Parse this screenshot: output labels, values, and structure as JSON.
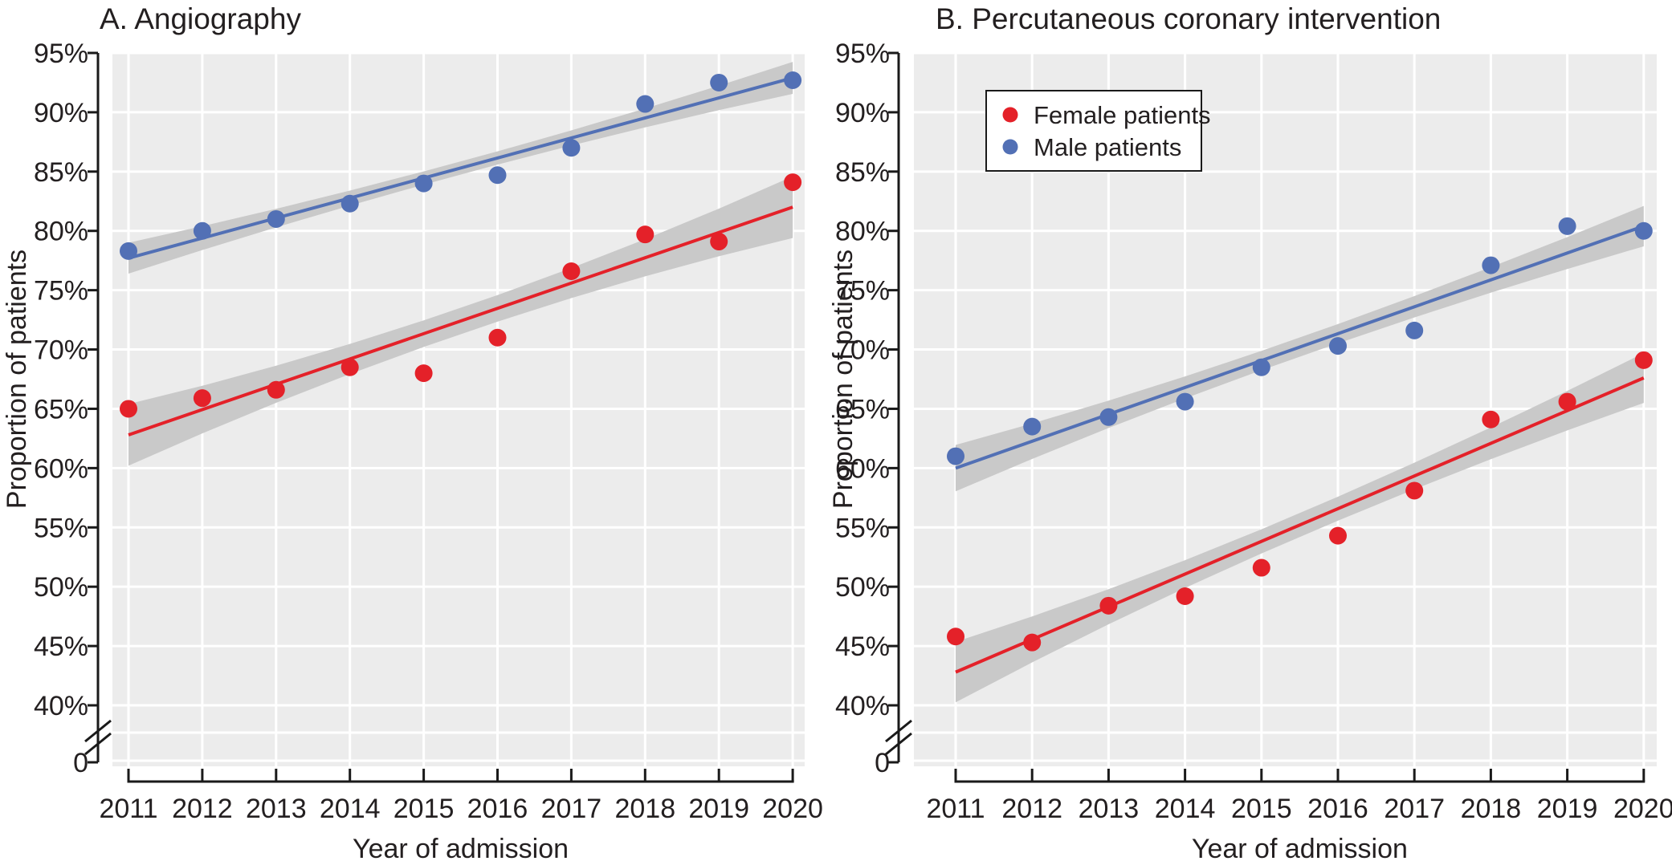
{
  "page": {
    "background": "#ffffff"
  },
  "colors": {
    "plot_background": "#ececec",
    "gridline": "#ffffff",
    "ci_band": "#c9c9c9",
    "axis": "#1a1a1a",
    "text": "#231f20",
    "female": "#e42129",
    "male": "#5270b5",
    "legend_background": "#ffffff",
    "legend_border": "#1a1a1a"
  },
  "chart_data": [
    {
      "id": "A",
      "type": "scatter",
      "title": "A. Angiography",
      "xlabel": "Year of admission",
      "ylabel": "Proportion of patients",
      "x_categories": [
        "2011",
        "2012",
        "2013",
        "2014",
        "2015",
        "2016",
        "2017",
        "2018",
        "2019",
        "2020"
      ],
      "y_ticks": [
        {
          "label": "95%",
          "value": 95
        },
        {
          "label": "90%",
          "value": 90
        },
        {
          "label": "85%",
          "value": 85
        },
        {
          "label": "80%",
          "value": 80
        },
        {
          "label": "75%",
          "value": 75
        },
        {
          "label": "70%",
          "value": 70
        },
        {
          "label": "65%",
          "value": 65
        },
        {
          "label": "60%",
          "value": 60
        },
        {
          "label": "55%",
          "value": 55
        },
        {
          "label": "50%",
          "value": 50
        },
        {
          "label": "45%",
          "value": 45
        },
        {
          "label": "40%",
          "value": 40
        }
      ],
      "zero_tick_label": "0",
      "axis_break": true,
      "legend_visible": false,
      "ylim": [
        40,
        95
      ],
      "grid": true,
      "series": [
        {
          "name": "Female patients",
          "color": "#e42129",
          "values": [
            65.0,
            65.9,
            66.6,
            68.5,
            68.0,
            71.0,
            76.6,
            79.7,
            79.1,
            84.1
          ],
          "trend": {
            "start": 62.8,
            "end": 82.0
          },
          "ci_half": {
            "start": 2.6,
            "mid": 1.1,
            "end": 2.6
          }
        },
        {
          "name": "Male patients",
          "color": "#5270b5",
          "values": [
            78.3,
            80.0,
            81.0,
            82.3,
            84.0,
            84.7,
            87.0,
            90.7,
            92.5,
            92.7
          ],
          "trend": {
            "start": 77.7,
            "end": 92.9
          },
          "ci_half": {
            "start": 1.3,
            "mid": 0.55,
            "end": 1.35
          }
        }
      ]
    },
    {
      "id": "B",
      "type": "scatter",
      "title": "B. Percutaneous coronary intervention",
      "xlabel": "Year of admission",
      "ylabel": "Proportion of patients",
      "x_categories": [
        "2011",
        "2012",
        "2013",
        "2014",
        "2015",
        "2016",
        "2017",
        "2018",
        "2019",
        "2020"
      ],
      "y_ticks": [
        {
          "label": "95%",
          "value": 95
        },
        {
          "label": "90%",
          "value": 90
        },
        {
          "label": "85%",
          "value": 85
        },
        {
          "label": "80%",
          "value": 80
        },
        {
          "label": "75%",
          "value": 75
        },
        {
          "label": "70%",
          "value": 70
        },
        {
          "label": "65%",
          "value": 65
        },
        {
          "label": "60%",
          "value": 60
        },
        {
          "label": "55%",
          "value": 55
        },
        {
          "label": "50%",
          "value": 50
        },
        {
          "label": "45%",
          "value": 45
        },
        {
          "label": "40%",
          "value": 40
        }
      ],
      "zero_tick_label": "0",
      "axis_break": true,
      "legend_visible": true,
      "ylim": [
        40,
        95
      ],
      "grid": true,
      "series": [
        {
          "name": "Female patients",
          "color": "#e42129",
          "values": [
            45.8,
            45.3,
            48.4,
            49.2,
            51.6,
            54.3,
            58.1,
            64.1,
            65.6,
            69.1
          ],
          "trend": {
            "start": 42.8,
            "end": 67.6
          },
          "ci_half": {
            "start": 2.55,
            "mid": 1.0,
            "end": 2.1
          }
        },
        {
          "name": "Male patients",
          "color": "#5270b5",
          "values": [
            61.0,
            63.5,
            64.3,
            65.6,
            68.5,
            70.3,
            71.6,
            77.1,
            80.4,
            80.0
          ],
          "trend": {
            "start": 60.0,
            "end": 80.4
          },
          "ci_half": {
            "start": 1.95,
            "mid": 0.8,
            "end": 1.7
          }
        }
      ]
    }
  ]
}
